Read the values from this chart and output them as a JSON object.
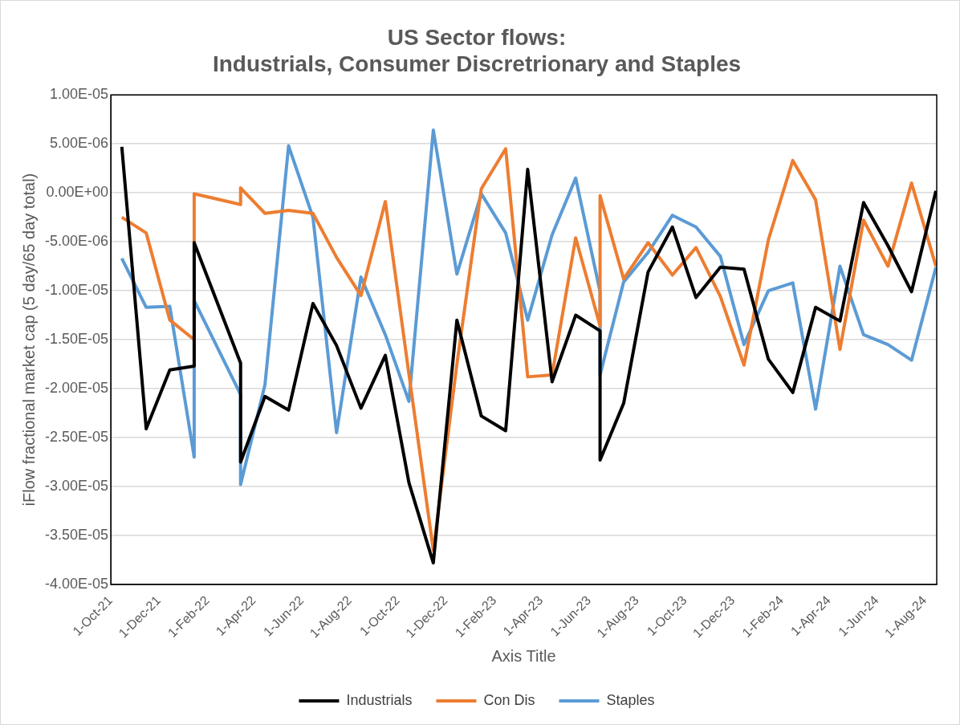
{
  "chart_data": {
    "type": "line",
    "title": "US Sector flows:\nIndustrials, Consumer Discretrionary and Staples",
    "xlabel": "Axis Title",
    "ylabel": "iFlow fractional market cap (5 day/65 day total)",
    "x": [
      "2021-10-15",
      "2021-11-15",
      "2021-12-15",
      "2022-01-15",
      "2022-01-15",
      "2022-03-15",
      "2022-03-15",
      "2022-04-15",
      "2022-05-15",
      "2022-06-15",
      "2022-07-15",
      "2022-08-15",
      "2022-09-15",
      "2022-10-15",
      "2022-11-15",
      "2022-12-15",
      "2023-01-15",
      "2023-02-15",
      "2023-03-15",
      "2023-04-15",
      "2023-05-15",
      "2023-06-15",
      "2023-06-15",
      "2023-07-15",
      "2023-08-15",
      "2023-09-15",
      "2023-10-15",
      "2023-11-15",
      "2023-12-15",
      "2024-01-15",
      "2024-02-15",
      "2024-03-15",
      "2024-04-15",
      "2024-05-15",
      "2024-06-15",
      "2024-07-15",
      "2024-08-15"
    ],
    "series": [
      {
        "name": "Industrials",
        "color": "#000000",
        "values": [
          4.7e-06,
          -2.41e-05,
          -1.81e-05,
          -1.77e-05,
          -5.1e-06,
          -1.74e-05,
          -2.75e-05,
          -2.08e-05,
          -2.22e-05,
          -1.13e-05,
          -1.56e-05,
          -2.2e-05,
          -1.66e-05,
          -2.96e-05,
          -3.78e-05,
          -1.3e-05,
          -2.28e-05,
          -2.43e-05,
          2.4e-06,
          -1.93e-05,
          -1.25e-05,
          -1.41e-05,
          -2.73e-05,
          -2.15e-05,
          -8.1e-06,
          -3.5e-06,
          -1.07e-05,
          -7.6e-06,
          -7.8e-06,
          -1.7e-05,
          -2.04e-05,
          -1.17e-05,
          -1.31e-05,
          -1e-06,
          -5.4e-06,
          -1.01e-05,
          2e-07
        ]
      },
      {
        "name": "Con Dis",
        "color": "#ed7d31",
        "values": [
          -2.5e-06,
          -4.1e-06,
          -1.3e-05,
          -1.5e-05,
          -1e-07,
          -1.2e-06,
          5e-07,
          -2.1e-06,
          -1.8e-06,
          -2.1e-06,
          -6.6e-06,
          -1.05e-05,
          -9e-07,
          -1.85e-05,
          -3.65e-05,
          -1.75e-05,
          4e-07,
          4.5e-06,
          -1.88e-05,
          -1.86e-05,
          -4.6e-06,
          -1.36e-05,
          -3e-07,
          -8.8e-06,
          -5.1e-06,
          -8.4e-06,
          -5.6e-06,
          -1.06e-05,
          -1.76e-05,
          -4.8e-06,
          3.3e-06,
          -7e-07,
          -1.6e-05,
          -2.8e-06,
          -7.5e-06,
          1e-06,
          -7.5e-06
        ]
      },
      {
        "name": "Staples",
        "color": "#5b9bd5",
        "values": [
          -6.7e-06,
          -1.17e-05,
          -1.16e-05,
          -2.7e-05,
          -1.1e-05,
          -2.06e-05,
          -2.98e-05,
          -1.96e-05,
          4.8e-06,
          -2.5e-06,
          -2.45e-05,
          -8.6e-06,
          -1.45e-05,
          -2.13e-05,
          6.4e-06,
          -8.3e-06,
          -1e-07,
          -4.1e-06,
          -1.3e-05,
          -4.3e-06,
          1.5e-06,
          -1.01e-05,
          -1.86e-05,
          -9.1e-06,
          -6.1e-06,
          -2.3e-06,
          -3.5e-06,
          -6.5e-06,
          -1.55e-05,
          -1e-05,
          -9.2e-06,
          -2.21e-05,
          -7.5e-06,
          -1.45e-05,
          -1.55e-05,
          -1.71e-05,
          -7.6e-06
        ]
      }
    ],
    "xlim": [
      "2021-10-01",
      "2024-08-16"
    ],
    "xticks": [
      {
        "value": "2021-10-01",
        "label": "1-Oct-21"
      },
      {
        "value": "2021-12-01",
        "label": "1-Dec-21"
      },
      {
        "value": "2022-02-01",
        "label": "1-Feb-22"
      },
      {
        "value": "2022-04-01",
        "label": "1-Apr-22"
      },
      {
        "value": "2022-06-01",
        "label": "1-Jun-22"
      },
      {
        "value": "2022-08-01",
        "label": "1-Aug-22"
      },
      {
        "value": "2022-10-01",
        "label": "1-Oct-22"
      },
      {
        "value": "2022-12-01",
        "label": "1-Dec-22"
      },
      {
        "value": "2023-02-01",
        "label": "1-Feb-23"
      },
      {
        "value": "2023-04-01",
        "label": "1-Apr-23"
      },
      {
        "value": "2023-06-01",
        "label": "1-Jun-23"
      },
      {
        "value": "2023-08-01",
        "label": "1-Aug-23"
      },
      {
        "value": "2023-10-01",
        "label": "1-Oct-23"
      },
      {
        "value": "2023-12-01",
        "label": "1-Dec-23"
      },
      {
        "value": "2024-02-01",
        "label": "1-Feb-24"
      },
      {
        "value": "2024-04-01",
        "label": "1-Apr-24"
      },
      {
        "value": "2024-06-01",
        "label": "1-Jun-24"
      },
      {
        "value": "2024-08-01",
        "label": "1-Aug-24"
      }
    ],
    "ylim": [
      -4e-05,
      1e-05
    ],
    "yticks": [
      {
        "value": -4e-05,
        "label": "-4.00E-05"
      },
      {
        "value": -3.5e-05,
        "label": "-3.50E-05"
      },
      {
        "value": -3e-05,
        "label": "-3.00E-05"
      },
      {
        "value": -2.5e-05,
        "label": "-2.50E-05"
      },
      {
        "value": -2e-05,
        "label": "-2.00E-05"
      },
      {
        "value": -1.5e-05,
        "label": "-1.50E-05"
      },
      {
        "value": -1e-05,
        "label": "-1.00E-05"
      },
      {
        "value": -5e-06,
        "label": "-5.00E-06"
      },
      {
        "value": 0,
        "label": "0.00E+00"
      },
      {
        "value": 5e-06,
        "label": "5.00E-06"
      },
      {
        "value": 1e-05,
        "label": "1.00E-05"
      }
    ],
    "grid": "y",
    "legend": "bottom",
    "marker": "none",
    "line_style": "solid"
  }
}
